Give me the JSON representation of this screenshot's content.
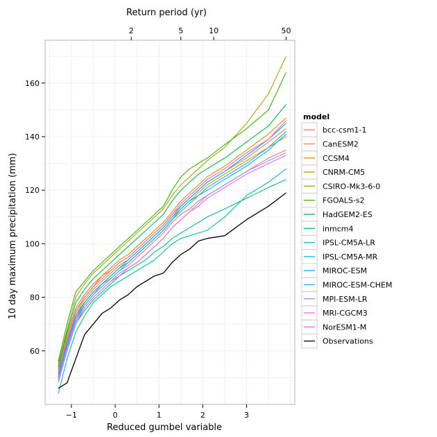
{
  "chart_data": {
    "type": "line",
    "xlabel": "Reduced gumbel variable",
    "ylabel": "10 day maximum precipitation (mm)",
    "top_axis_label": "Return period (yr)",
    "top_axis_ticks": [
      "2",
      "5",
      "10",
      "50"
    ],
    "x_ticks": [
      -1,
      0,
      1,
      2,
      3
    ],
    "y_ticks": [
      60,
      80,
      100,
      120,
      140,
      160
    ],
    "xlim": [
      -1.6,
      4.1
    ],
    "ylim": [
      40,
      176
    ],
    "grid": true,
    "legend_title": "model",
    "legend_position": "right",
    "x": [
      -1.3,
      -1.1,
      -0.9,
      -0.7,
      -0.5,
      -0.3,
      -0.1,
      0.1,
      0.3,
      0.5,
      0.7,
      0.9,
      1.1,
      1.3,
      1.5,
      1.7,
      1.9,
      2.1,
      2.5,
      3.0,
      3.5,
      3.9
    ],
    "series": [
      {
        "name": "bcc-csm1-1",
        "color": "#f8766d",
        "values": [
          50,
          61,
          71,
          77,
          81,
          85,
          87,
          90,
          92,
          95,
          98,
          101,
          104,
          108,
          111,
          113,
          116,
          118,
          122,
          127,
          132,
          135
        ]
      },
      {
        "name": "CanESM2",
        "color": "#ed8141",
        "values": [
          52,
          64,
          74,
          80,
          84,
          88,
          90,
          93,
          95,
          98,
          101,
          104,
          107,
          111,
          114,
          117,
          120,
          123,
          127,
          132,
          138,
          143
        ]
      },
      {
        "name": "CCSM4",
        "color": "#de8c00",
        "values": [
          53,
          66,
          76,
          81,
          85,
          88,
          91,
          94,
          96,
          99,
          102,
          105,
          108,
          112,
          116,
          119,
          122,
          125,
          129,
          135,
          141,
          147
        ]
      },
      {
        "name": "CNRM-CM5",
        "color": "#c99800",
        "values": [
          51,
          63,
          73,
          79,
          83,
          86,
          89,
          92,
          94,
          97,
          100,
          103,
          106,
          110,
          113,
          116,
          119,
          122,
          126,
          131,
          136,
          140
        ]
      },
      {
        "name": "CSIRO-Mk3-6-0",
        "color": "#a3a500",
        "values": [
          55,
          68,
          80,
          85,
          89,
          92,
          95,
          98,
          101,
          104,
          107,
          110,
          113,
          118,
          122,
          125,
          128,
          131,
          136,
          145,
          156,
          170
        ]
      },
      {
        "name": "FGOALS-s2",
        "color": "#39b600",
        "values": [
          56,
          70,
          82,
          86,
          90,
          93,
          96,
          99,
          102,
          105,
          108,
          111,
          114,
          120,
          125,
          128,
          130,
          132,
          137,
          143,
          150,
          164
        ]
      },
      {
        "name": "HadGEM2-ES",
        "color": "#00bb4e",
        "values": [
          54,
          67,
          78,
          83,
          87,
          90,
          93,
          96,
          99,
          102,
          105,
          108,
          111,
          116,
          120,
          123,
          126,
          128,
          132,
          138,
          144,
          152
        ]
      },
      {
        "name": "inmcm4",
        "color": "#00bf7d",
        "values": [
          49,
          60,
          70,
          75,
          79,
          82,
          85,
          88,
          90,
          92,
          94,
          97,
          99,
          102,
          104,
          106,
          108,
          110,
          113,
          117,
          121,
          124
        ]
      },
      {
        "name": "IPSL-CM5A-LR",
        "color": "#00c1a3",
        "values": [
          44,
          57,
          67,
          73,
          78,
          81,
          84,
          86,
          88,
          90,
          92,
          94,
          97,
          100,
          102,
          103,
          104,
          105,
          110,
          118,
          123,
          128
        ]
      },
      {
        "name": "IPSL-CM5A-MR",
        "color": "#00bae0",
        "values": [
          50,
          62,
          72,
          78,
          82,
          85,
          88,
          91,
          93,
          96,
          99,
          102,
          105,
          109,
          113,
          116,
          118,
          120,
          124,
          129,
          135,
          141
        ]
      },
      {
        "name": "MIROC-ESM",
        "color": "#00b0f6",
        "values": [
          51,
          63,
          73,
          78,
          82,
          85,
          88,
          91,
          94,
          97,
          100,
          103,
          106,
          110,
          114,
          117,
          120,
          123,
          127,
          133,
          139,
          145
        ]
      },
      {
        "name": "MIROC-ESM-CHEM",
        "color": "#35a2ff",
        "values": [
          50,
          62,
          72,
          77,
          81,
          84,
          87,
          90,
          93,
          96,
          99,
          102,
          105,
          109,
          112,
          115,
          118,
          121,
          125,
          130,
          136,
          142
        ]
      },
      {
        "name": "MPI-ESM-LR",
        "color": "#9590ff",
        "values": [
          48,
          60,
          70,
          76,
          80,
          83,
          86,
          89,
          91,
          93,
          96,
          99,
          102,
          106,
          109,
          112,
          115,
          118,
          122,
          127,
          131,
          134
        ]
      },
      {
        "name": "MRI-CGCM3",
        "color": "#e76bf3",
        "values": [
          49,
          61,
          71,
          76,
          80,
          83,
          86,
          88,
          91,
          93,
          96,
          99,
          102,
          106,
          109,
          112,
          114,
          117,
          121,
          126,
          130,
          133
        ]
      },
      {
        "name": "NorESM1-M",
        "color": "#ff62bc",
        "values": [
          52,
          65,
          75,
          80,
          84,
          87,
          90,
          93,
          95,
          98,
          101,
          104,
          107,
          111,
          115,
          118,
          121,
          124,
          128,
          134,
          139,
          146
        ]
      },
      {
        "name": "Observations",
        "color": "#000000",
        "values": [
          46,
          48,
          57,
          66,
          70,
          74,
          76,
          79,
          81,
          84,
          86,
          88,
          89,
          93,
          96,
          98,
          101,
          102,
          103,
          109,
          114,
          119
        ]
      }
    ]
  }
}
